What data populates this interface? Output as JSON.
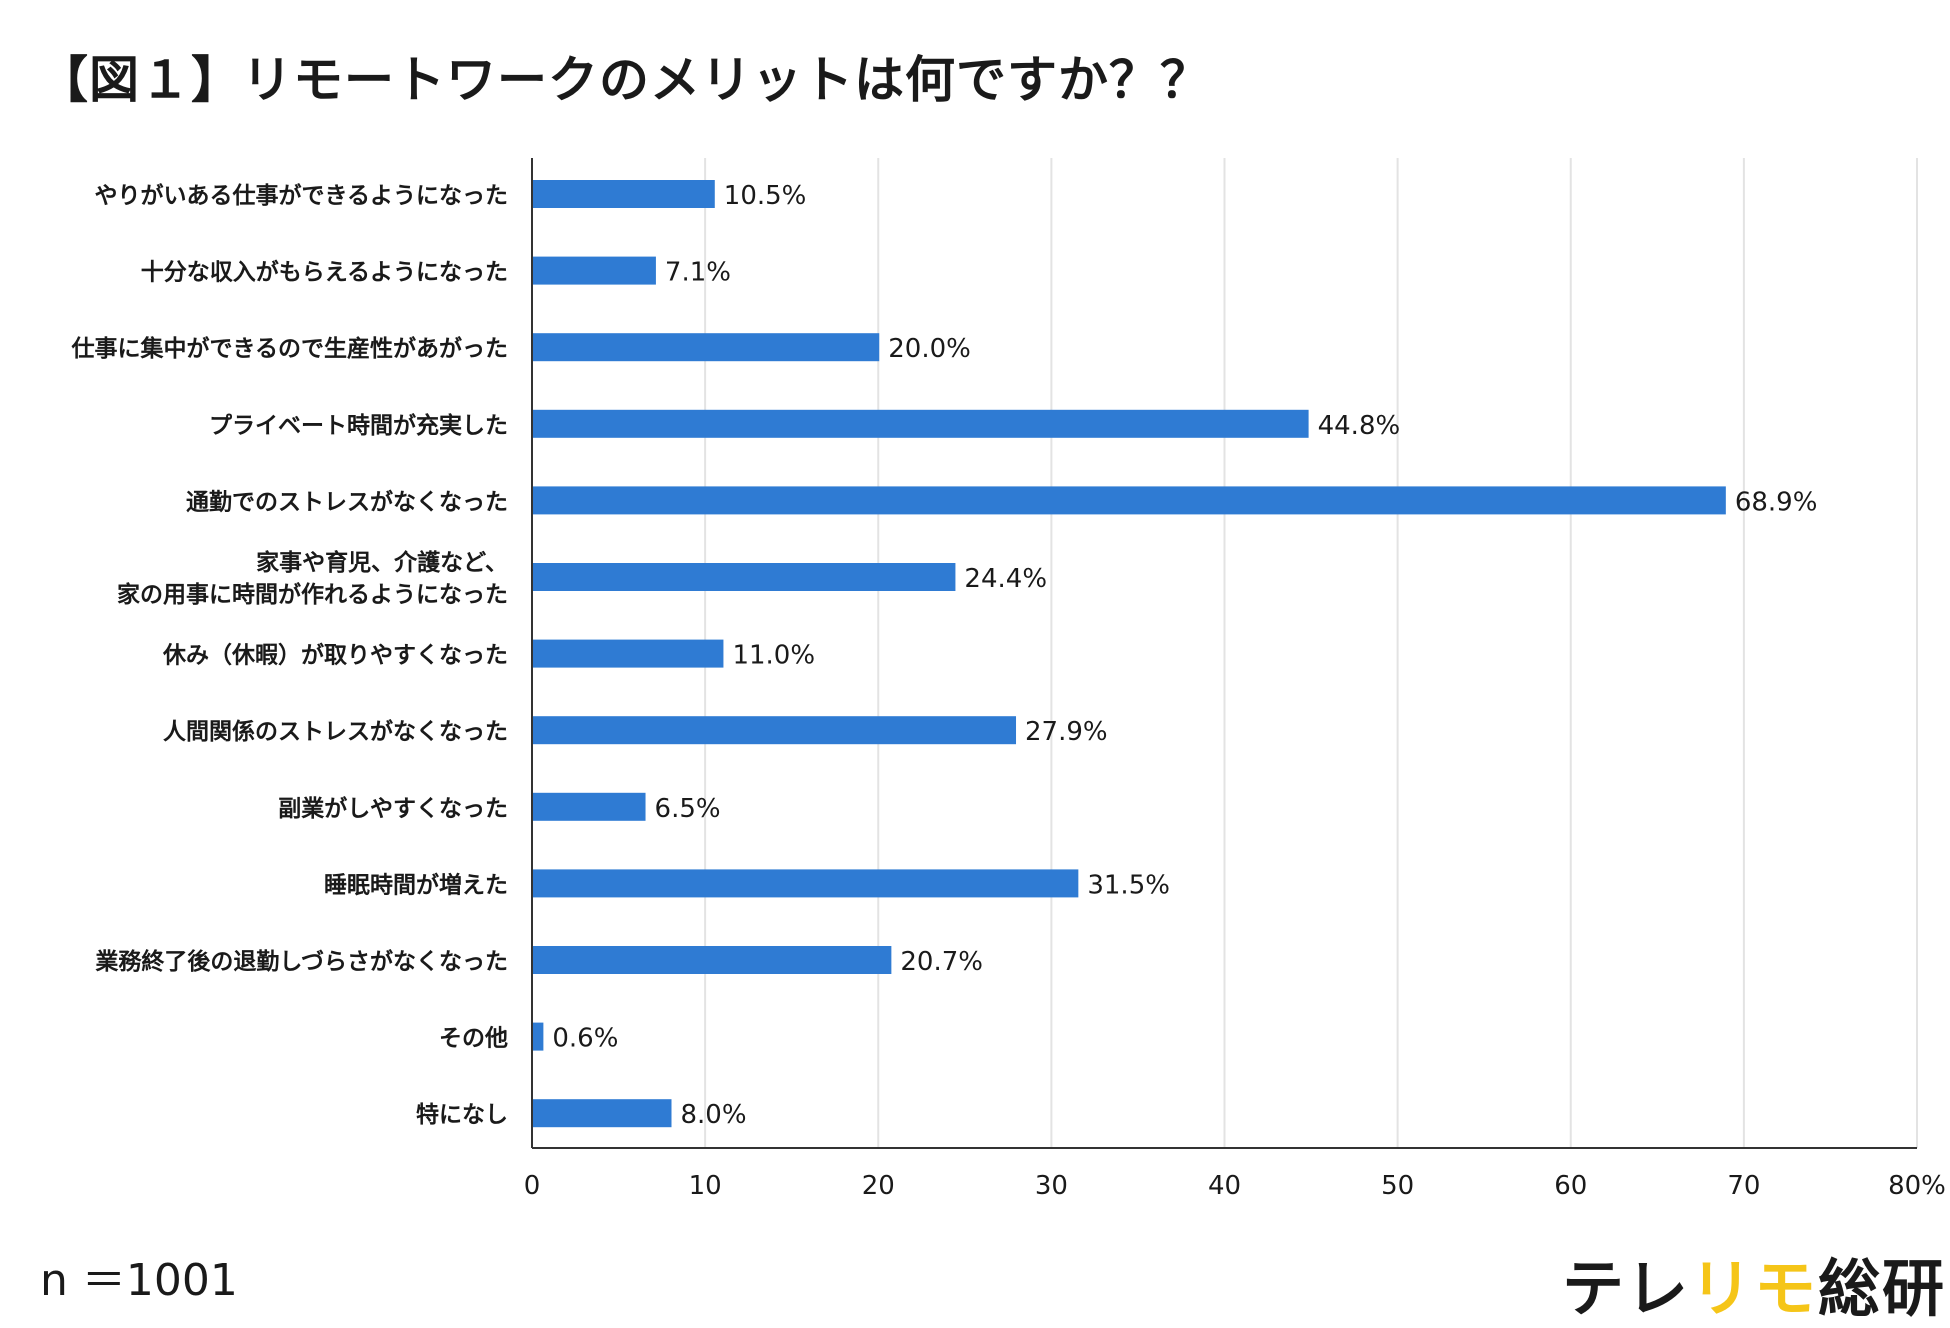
{
  "title": "【図１】リモートワークのメリットは何ですか？？",
  "sample_size": "n ＝1001",
  "brand": {
    "part1": "テレ",
    "part2": "リモ",
    "part3": "総研",
    "dark_color": "#1a1a1a",
    "accent_color": "#f5c518"
  },
  "colors": {
    "bar": "#2f7bd3",
    "grid": "#e3e3e3",
    "axis": "#333333",
    "text": "#1a1a1a"
  },
  "chart_data": {
    "type": "bar",
    "orientation": "horizontal",
    "title": "【図１】リモートワークのメリットは何ですか？？",
    "xlabel": "",
    "ylabel": "",
    "xlim": [
      0,
      80
    ],
    "grid": true,
    "x_ticks": [
      "0",
      "10",
      "20",
      "30",
      "40",
      "50",
      "60",
      "70",
      "80%"
    ],
    "x_tick_values": [
      0,
      10,
      20,
      30,
      40,
      50,
      60,
      70,
      80
    ],
    "categories": [
      [
        "やりがいある仕事ができるようになった"
      ],
      [
        "十分な収入がもらえるようになった"
      ],
      [
        "仕事に集中ができるので生産性があがった"
      ],
      [
        "プライベート時間が充実した"
      ],
      [
        "通勤でのストレスがなくなった"
      ],
      [
        "家事や育児、介護など、",
        "家の用事に時間が作れるようになった"
      ],
      [
        "休み（休暇）が取りやすくなった"
      ],
      [
        "人間関係のストレスがなくなった"
      ],
      [
        "副業がしやすくなった"
      ],
      [
        "睡眠時間が増えた"
      ],
      [
        "業務終了後の退勤しづらさがなくなった"
      ],
      [
        "その他"
      ],
      [
        "特になし"
      ]
    ],
    "values": [
      10.5,
      7.1,
      20.0,
      44.8,
      68.9,
      24.4,
      11.0,
      27.9,
      6.5,
      31.5,
      20.7,
      0.6,
      8.0
    ],
    "value_labels": [
      "10.5%",
      "7.1%",
      "20.0%",
      "44.8%",
      "68.9%",
      "24.4%",
      "11.0%",
      "27.9%",
      "6.5%",
      "31.5%",
      "20.7%",
      "0.6%",
      "8.0%"
    ]
  }
}
